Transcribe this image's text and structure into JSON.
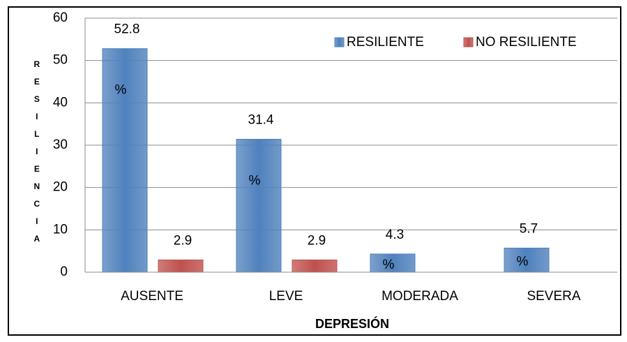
{
  "chart_data": {
    "type": "bar",
    "categories": [
      "AUSENTE",
      "LEVE",
      "MODERADA",
      "SEVERA"
    ],
    "series": [
      {
        "name": "RESILIENTE",
        "color": "#4f81bd",
        "values": [
          52.8,
          31.4,
          4.3,
          5.7
        ],
        "unit_label": "%"
      },
      {
        "name": "NO RESILIENTE",
        "color": "#c0504d",
        "values": [
          2.9,
          2.9,
          null,
          null
        ]
      }
    ],
    "xlabel": "DEPRESIÓN",
    "ylabel": "RESILIENCIA",
    "ylim": [
      0,
      60
    ],
    "yticks": [
      0,
      10,
      20,
      30,
      40,
      50,
      60
    ],
    "grid": true,
    "legend": "top right"
  }
}
